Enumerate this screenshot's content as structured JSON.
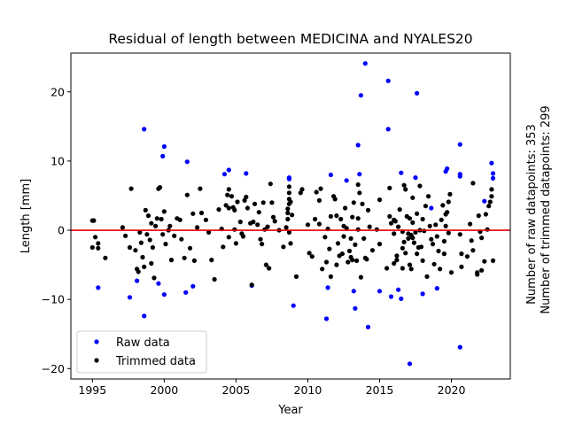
{
  "chart_data": {
    "type": "scatter",
    "title": "Residual of length between MEDICINA and NYALES20",
    "xlabel": "Year",
    "ylabel": "Length [mm]",
    "xlim": [
      1993.5,
      2024.1
    ],
    "ylim": [
      -21.5,
      25.6
    ],
    "xticks": [
      1995,
      2000,
      2005,
      2010,
      2015,
      2020
    ],
    "yticks": [
      -20,
      -10,
      0,
      10,
      20
    ],
    "ytick_labels": [
      "−20",
      "−10",
      "0",
      "10",
      "20"
    ],
    "zero_line": {
      "y": 0,
      "color": "#e00000"
    },
    "legend": {
      "position": "lower-left"
    },
    "side_annotations": [
      "Number of raw datapoints: 353",
      "Number of trimmed datapoints: 299"
    ],
    "series": [
      {
        "name": "Raw data",
        "color": "#0000ff",
        "points": [
          [
            1995.4,
            -8.3
          ],
          [
            1997.6,
            -9.7
          ],
          [
            1998.1,
            -7.3
          ],
          [
            1998.6,
            14.6
          ],
          [
            1998.6,
            -12.4
          ],
          [
            1999.6,
            -7.7
          ],
          [
            1999.9,
            10.7
          ],
          [
            2000.0,
            12.1
          ],
          [
            2000.0,
            -9.3
          ],
          [
            2001.6,
            9.9
          ],
          [
            2001.5,
            -9.0
          ],
          [
            2002.0,
            -8.1
          ],
          [
            2004.2,
            8.1
          ],
          [
            2004.5,
            8.7
          ],
          [
            2005.7,
            8.2
          ],
          [
            2006.1,
            -8.0
          ],
          [
            2008.7,
            7.4
          ],
          [
            2008.7,
            7.6
          ],
          [
            2009.0,
            -10.9
          ],
          [
            2011.3,
            -12.8
          ],
          [
            2011.4,
            -8.3
          ],
          [
            2011.6,
            8.0
          ],
          [
            2012.7,
            7.2
          ],
          [
            2013.2,
            -8.8
          ],
          [
            2013.3,
            -11.3
          ],
          [
            2013.5,
            12.3
          ],
          [
            2013.6,
            8.1
          ],
          [
            2013.7,
            19.5
          ],
          [
            2014.0,
            24.1
          ],
          [
            2014.2,
            -14.0
          ],
          [
            2015.0,
            -8.8
          ],
          [
            2015.6,
            21.6
          ],
          [
            2015.6,
            14.6
          ],
          [
            2015.8,
            -9.6
          ],
          [
            2016.3,
            -8.6
          ],
          [
            2016.5,
            -9.9
          ],
          [
            2016.5,
            8.3
          ],
          [
            2017.1,
            -19.3
          ],
          [
            2017.5,
            7.6
          ],
          [
            2017.6,
            19.8
          ],
          [
            2018.0,
            -9.2
          ],
          [
            2018.6,
            3.2
          ],
          [
            2019.0,
            -8.4
          ],
          [
            2019.7,
            8.9
          ],
          [
            2019.6,
            8.5
          ],
          [
            2020.6,
            12.4
          ],
          [
            2020.6,
            8.1
          ],
          [
            2020.6,
            -16.9
          ],
          [
            2020.6,
            7.8
          ],
          [
            2022.3,
            4.2
          ],
          [
            2022.8,
            9.7
          ],
          [
            2022.9,
            7.5
          ],
          [
            2022.9,
            8.2
          ]
        ]
      },
      {
        "name": "Trimmed data",
        "color": "#000000",
        "points": [
          [
            1995.0,
            1.4
          ],
          [
            1995.1,
            1.4
          ],
          [
            1995.0,
            -2.5
          ],
          [
            1995.2,
            -1.0
          ],
          [
            1995.4,
            -1.9
          ],
          [
            1995.4,
            -2.6
          ],
          [
            1995.9,
            -4.0
          ],
          [
            1997.1,
            0.4
          ],
          [
            1997.3,
            -0.8
          ],
          [
            1997.6,
            -2.5
          ],
          [
            1997.7,
            6.0
          ],
          [
            1998.0,
            -2.9
          ],
          [
            1998.1,
            -5.6
          ],
          [
            1998.2,
            -6.0
          ],
          [
            1998.3,
            -0.3
          ],
          [
            1998.4,
            -1.8
          ],
          [
            1998.5,
            -3.9
          ],
          [
            1998.6,
            -5.3
          ],
          [
            1998.7,
            2.9
          ],
          [
            1998.8,
            -0.6
          ],
          [
            1998.9,
            2.1
          ],
          [
            1999.0,
            -1.4
          ],
          [
            1999.1,
            1.0
          ],
          [
            1999.1,
            -4.8
          ],
          [
            1999.2,
            -2.5
          ],
          [
            1999.3,
            -6.9
          ],
          [
            1999.4,
            0.6
          ],
          [
            1999.5,
            1.7
          ],
          [
            1999.6,
            6.0
          ],
          [
            1999.7,
            6.2
          ],
          [
            1999.8,
            1.6
          ],
          [
            1999.9,
            -0.6
          ],
          [
            2000.0,
            2.7
          ],
          [
            2000.1,
            -2.0
          ],
          [
            2000.3,
            0.0
          ],
          [
            2000.5,
            -4.3
          ],
          [
            2000.7,
            -0.8
          ],
          [
            2000.9,
            1.7
          ],
          [
            2001.1,
            1.5
          ],
          [
            2001.2,
            -1.3
          ],
          [
            2001.4,
            -4.0
          ],
          [
            2001.6,
            5.1
          ],
          [
            2001.8,
            -2.6
          ],
          [
            2002.0,
            2.4
          ],
          [
            2002.1,
            -4.4
          ],
          [
            2002.3,
            0.4
          ],
          [
            2002.5,
            6.0
          ],
          [
            2002.6,
            2.5
          ],
          [
            2002.9,
            1.5
          ],
          [
            2003.1,
            -0.3
          ],
          [
            2003.3,
            -4.3
          ],
          [
            2003.5,
            -7.1
          ],
          [
            2003.8,
            3.0
          ],
          [
            2004.0,
            0.2
          ],
          [
            2004.1,
            -2.4
          ],
          [
            2004.3,
            3.6
          ],
          [
            2004.4,
            5.1
          ],
          [
            2004.5,
            5.9
          ],
          [
            2004.5,
            3.2
          ],
          [
            2004.5,
            -1.0
          ],
          [
            2004.7,
            4.9
          ],
          [
            2004.8,
            3.3
          ],
          [
            2004.9,
            0.1
          ],
          [
            2005.0,
            -1.9
          ],
          [
            2005.1,
            4.1
          ],
          [
            2005.3,
            1.2
          ],
          [
            2005.4,
            -0.5
          ],
          [
            2005.5,
            -0.9
          ],
          [
            2005.6,
            4.3
          ],
          [
            2005.7,
            4.8
          ],
          [
            2005.8,
            3.2
          ],
          [
            2006.0,
            1.0
          ],
          [
            2006.1,
            -7.9
          ],
          [
            2006.2,
            1.2
          ],
          [
            2006.3,
            3.8
          ],
          [
            2006.5,
            0.8
          ],
          [
            2006.6,
            2.6
          ],
          [
            2006.7,
            -1.3
          ],
          [
            2006.8,
            -2.0
          ],
          [
            2006.9,
            4.0
          ],
          [
            2007.0,
            0.1
          ],
          [
            2007.1,
            -5.0
          ],
          [
            2007.2,
            0.5
          ],
          [
            2007.3,
            -5.5
          ],
          [
            2007.4,
            6.7
          ],
          [
            2007.5,
            4.0
          ],
          [
            2007.6,
            1.9
          ],
          [
            2007.7,
            1.3
          ],
          [
            2008.0,
            0.0
          ],
          [
            2008.3,
            -2.4
          ],
          [
            2008.5,
            0.4
          ],
          [
            2008.6,
            1.6
          ],
          [
            2008.6,
            2.5
          ],
          [
            2008.6,
            3.1
          ],
          [
            2008.7,
            3.8
          ],
          [
            2008.7,
            4.5
          ],
          [
            2008.7,
            5.4
          ],
          [
            2008.7,
            6.3
          ],
          [
            2008.7,
            -0.3
          ],
          [
            2008.8,
            -1.9
          ],
          [
            2008.8,
            4.1
          ],
          [
            2008.9,
            2.2
          ],
          [
            2009.2,
            -6.7
          ],
          [
            2009.5,
            5.4
          ],
          [
            2009.6,
            5.9
          ],
          [
            2010.0,
            0.8
          ],
          [
            2010.1,
            -3.3
          ],
          [
            2010.3,
            -3.8
          ],
          [
            2010.5,
            1.6
          ],
          [
            2010.6,
            5.5
          ],
          [
            2010.8,
            4.3
          ],
          [
            2010.8,
            0.9
          ],
          [
            2010.9,
            6.0
          ],
          [
            2011.0,
            -5.6
          ],
          [
            2011.2,
            -1.0
          ],
          [
            2011.3,
            -4.6
          ],
          [
            2011.4,
            0.2
          ],
          [
            2011.5,
            -2.7
          ],
          [
            2011.6,
            -6.7
          ],
          [
            2011.6,
            2.0
          ],
          [
            2011.8,
            4.9
          ],
          [
            2011.9,
            4.5
          ],
          [
            2012.0,
            2.1
          ],
          [
            2012.0,
            -5.0
          ],
          [
            2012.1,
            -1.9
          ],
          [
            2012.2,
            -3.7
          ],
          [
            2012.3,
            1.6
          ],
          [
            2012.4,
            -3.4
          ],
          [
            2012.5,
            -0.9
          ],
          [
            2012.5,
            0.6
          ],
          [
            2012.6,
            3.2
          ],
          [
            2012.7,
            0.3
          ],
          [
            2012.8,
            -4.6
          ],
          [
            2012.9,
            -3.0
          ],
          [
            2013.0,
            -1.2
          ],
          [
            2013.0,
            -3.9
          ],
          [
            2013.1,
            -4.3
          ],
          [
            2013.2,
            4.0
          ],
          [
            2013.3,
            -2.1
          ],
          [
            2013.4,
            -4.4
          ],
          [
            2013.5,
            1.7
          ],
          [
            2013.5,
            0.1
          ],
          [
            2013.5,
            6.6
          ],
          [
            2013.6,
            5.4
          ],
          [
            2013.7,
            -6.8
          ],
          [
            2013.8,
            3.8
          ],
          [
            2013.9,
            -1.2
          ],
          [
            2014.0,
            -4.0
          ],
          [
            2014.1,
            -4.2
          ],
          [
            2014.2,
            2.9
          ],
          [
            2014.3,
            0.5
          ],
          [
            2014.5,
            -2.9
          ],
          [
            2014.8,
            0.1
          ],
          [
            2015.0,
            -2.0
          ],
          [
            2015.0,
            4.4
          ],
          [
            2015.5,
            -5.5
          ],
          [
            2015.7,
            2.0
          ],
          [
            2015.7,
            6.1
          ],
          [
            2015.8,
            1.0
          ],
          [
            2016.0,
            -4.8
          ],
          [
            2016.0,
            1.5
          ],
          [
            2016.0,
            -0.5
          ],
          [
            2016.1,
            1.3
          ],
          [
            2016.2,
            -3.7
          ],
          [
            2016.2,
            -4.3
          ],
          [
            2016.3,
            0.5
          ],
          [
            2016.4,
            3.0
          ],
          [
            2016.6,
            -2.6
          ],
          [
            2016.6,
            -5.5
          ],
          [
            2016.6,
            -0.2
          ],
          [
            2016.7,
            6.5
          ],
          [
            2016.7,
            -1.7
          ],
          [
            2016.8,
            -3.3
          ],
          [
            2016.8,
            5.9
          ],
          [
            2016.9,
            2.0
          ],
          [
            2017.0,
            -1.2
          ],
          [
            2017.0,
            -0.5
          ],
          [
            2017.1,
            1.7
          ],
          [
            2017.1,
            -5.0
          ],
          [
            2017.2,
            -0.7
          ],
          [
            2017.2,
            -5.6
          ],
          [
            2017.3,
            -1.1
          ],
          [
            2017.3,
            1.1
          ],
          [
            2017.4,
            -1.8
          ],
          [
            2017.5,
            -0.3
          ],
          [
            2017.6,
            2.4
          ],
          [
            2017.6,
            -3.4
          ],
          [
            2017.7,
            -2.5
          ],
          [
            2017.8,
            6.4
          ],
          [
            2017.8,
            0.0
          ],
          [
            2017.9,
            -2.4
          ],
          [
            2018.0,
            -4.4
          ],
          [
            2018.0,
            1.6
          ],
          [
            2018.1,
            -0.1
          ],
          [
            2018.2,
            3.5
          ],
          [
            2018.3,
            -6.7
          ],
          [
            2018.4,
            4.9
          ],
          [
            2018.5,
            0.6
          ],
          [
            2018.6,
            -1.3
          ],
          [
            2018.7,
            -2.0
          ],
          [
            2018.8,
            -4.9
          ],
          [
            2018.9,
            0.8
          ],
          [
            2019.0,
            -0.9
          ],
          [
            2019.1,
            -3.0
          ],
          [
            2019.2,
            -5.6
          ],
          [
            2019.3,
            1.5
          ],
          [
            2019.4,
            3.6
          ],
          [
            2019.5,
            -1.6
          ],
          [
            2019.5,
            -3.4
          ],
          [
            2019.6,
            0.6
          ],
          [
            2019.6,
            2.3
          ],
          [
            2019.7,
            2.6
          ],
          [
            2019.8,
            -0.4
          ],
          [
            2019.8,
            4.1
          ],
          [
            2019.9,
            5.2
          ],
          [
            2020.0,
            -6.1
          ],
          [
            2020.6,
            -0.6
          ],
          [
            2020.7,
            -3.4
          ],
          [
            2020.7,
            -5.3
          ],
          [
            2021.3,
            0.9
          ],
          [
            2021.4,
            -1.5
          ],
          [
            2021.5,
            -2.9
          ],
          [
            2021.5,
            6.8
          ],
          [
            2021.8,
            -6.4
          ],
          [
            2021.9,
            2.1
          ],
          [
            2022.0,
            -0.2
          ],
          [
            2022.1,
            -5.8
          ],
          [
            2022.1,
            -1.1
          ],
          [
            2022.3,
            -4.5
          ],
          [
            2022.4,
            2.3
          ],
          [
            2022.5,
            0.1
          ],
          [
            2022.6,
            3.5
          ],
          [
            2022.7,
            4.1
          ],
          [
            2022.8,
            5.9
          ],
          [
            2022.8,
            4.9
          ],
          [
            2022.9,
            -4.4
          ],
          [
            2021.1,
            -3.8
          ],
          [
            2021.8,
            -6.1
          ],
          [
            2013.1,
            1.9
          ],
          [
            2017.3,
            4.7
          ],
          [
            2004.9,
            2.9
          ],
          [
            2000.4,
            0.6
          ]
        ]
      }
    ]
  }
}
